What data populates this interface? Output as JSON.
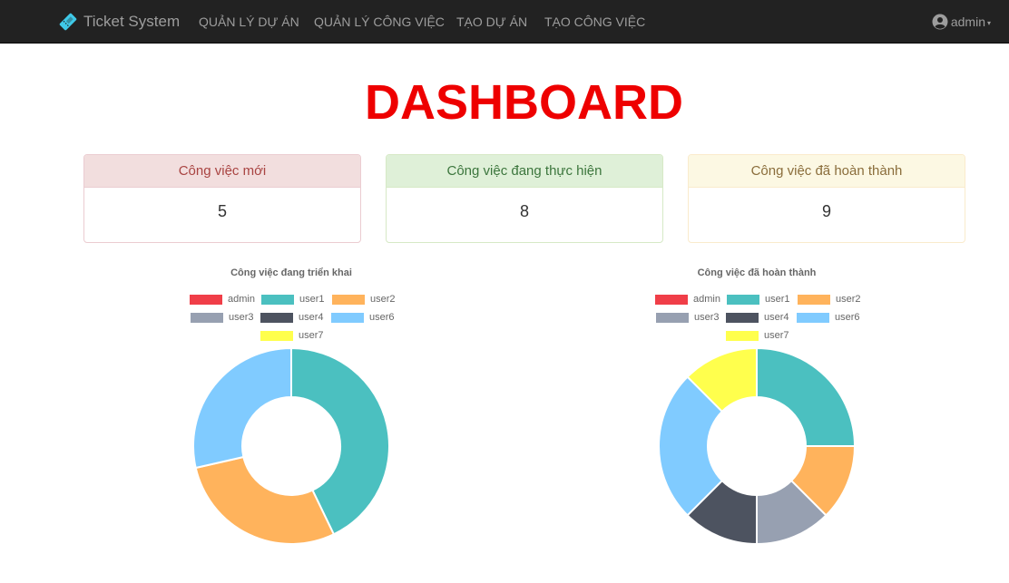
{
  "navbar": {
    "brand": "Ticket System",
    "items": [
      "QUẢN LÝ DỰ ÁN",
      "QUẢN LÝ CÔNG VIỆC",
      "TẠO DỰ ÁN",
      "TẠO CÔNG VIỆC"
    ],
    "user": "admin"
  },
  "title": "DASHBOARD",
  "cards": [
    {
      "label": "Công việc mới",
      "value": "5"
    },
    {
      "label": "Công việc đang thực hiện",
      "value": "8"
    },
    {
      "label": "Công việc đã hoàn thành",
      "value": "9"
    }
  ],
  "chart_data": [
    {
      "type": "pie",
      "title": "Công việc đang triển khai",
      "labels": [
        "admin",
        "user1",
        "user2",
        "user3",
        "user4",
        "user6",
        "user7"
      ],
      "colors": [
        "#f03e48",
        "#4bc0c0",
        "#ffb35c",
        "#97a0b1",
        "#4d5360",
        "#80cbff",
        "#ffff4d"
      ],
      "values": [
        0,
        3,
        2,
        0,
        0,
        2,
        0
      ],
      "legend": "top"
    },
    {
      "type": "pie",
      "title": "Công việc đã hoàn thành",
      "labels": [
        "admin",
        "user1",
        "user2",
        "user3",
        "user4",
        "user6",
        "user7"
      ],
      "colors": [
        "#f03e48",
        "#4bc0c0",
        "#ffb35c",
        "#97a0b1",
        "#4d5360",
        "#80cbff",
        "#ffff4d"
      ],
      "values": [
        0,
        2,
        1,
        1,
        1,
        2,
        1
      ],
      "legend": "top"
    }
  ]
}
